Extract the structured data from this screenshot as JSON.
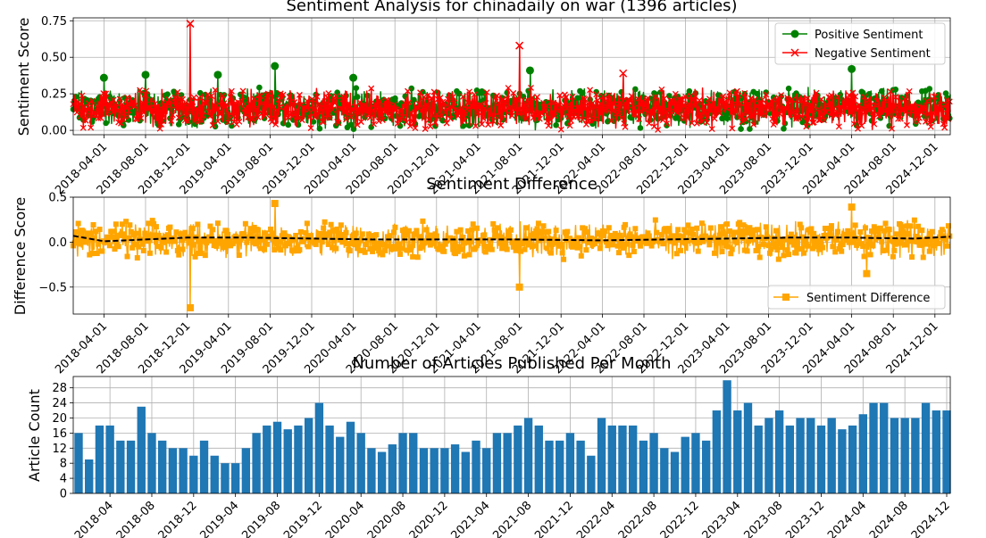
{
  "chart_data": [
    {
      "type": "line",
      "title": "Sentiment Analysis for chinadaily on war (1396 articles)",
      "xlabel": "",
      "ylabel": "Sentiment Score",
      "x_ticks": [
        "2018-04-01",
        "2018-08-01",
        "2018-12-01",
        "2019-04-01",
        "2019-08-01",
        "2019-12-01",
        "2020-04-01",
        "2020-08-01",
        "2020-12-01",
        "2021-04-01",
        "2021-08-01",
        "2021-12-01",
        "2022-04-01",
        "2022-08-01",
        "2022-12-01",
        "2023-04-01",
        "2023-08-01",
        "2023-12-01",
        "2024-04-01",
        "2024-08-01",
        "2024-12-01"
      ],
      "xlim": [
        "2018-01-01",
        "2025-01-15"
      ],
      "y_ticks": [
        "0.00",
        "0.25",
        "0.50",
        "0.75"
      ],
      "ylim": [
        -0.03,
        0.77
      ],
      "grid": true,
      "legend_position": "top-right",
      "series": [
        {
          "name": "Positive Sentiment",
          "color": "#008000",
          "marker": "circle",
          "n_points": 1396,
          "typical_range": [
            0.0,
            0.3
          ],
          "peaks": [
            {
              "x": "2018-04-01",
              "y": 0.36
            },
            {
              "x": "2018-08-01",
              "y": 0.38
            },
            {
              "x": "2019-03-01",
              "y": 0.38
            },
            {
              "x": "2019-08-15",
              "y": 0.44
            },
            {
              "x": "2020-04-01",
              "y": 0.36
            },
            {
              "x": "2021-09-01",
              "y": 0.41
            },
            {
              "x": "2024-04-01",
              "y": 0.42
            }
          ]
        },
        {
          "name": "Negative Sentiment",
          "color": "#ff0000",
          "marker": "x",
          "n_points": 1396,
          "typical_range": [
            0.0,
            0.3
          ],
          "peaks": [
            {
              "x": "2018-12-10",
              "y": 0.73
            },
            {
              "x": "2021-08-01",
              "y": 0.58
            },
            {
              "x": "2022-06-01",
              "y": 0.39
            }
          ]
        }
      ]
    },
    {
      "type": "line",
      "title": "Sentiment Difference",
      "xlabel": "",
      "ylabel": "Difference Score",
      "x_ticks": [
        "2018-04-01",
        "2018-08-01",
        "2018-12-01",
        "2019-04-01",
        "2019-08-01",
        "2019-12-01",
        "2020-04-01",
        "2020-08-01",
        "2020-12-01",
        "2021-04-01",
        "2021-08-01",
        "2021-12-01",
        "2022-04-01",
        "2022-08-01",
        "2022-12-01",
        "2023-04-01",
        "2023-08-01",
        "2023-12-01",
        "2024-04-01",
        "2024-08-01",
        "2024-12-01"
      ],
      "xlim": [
        "2018-01-01",
        "2025-01-15"
      ],
      "y_ticks": [
        "−0.5",
        "0.0",
        "0.5"
      ],
      "ylim": [
        -0.8,
        0.5
      ],
      "grid": true,
      "legend_position": "bottom-right",
      "series": [
        {
          "name": "Sentiment Difference",
          "color": "#ffa500",
          "marker": "square",
          "n_points": 1396,
          "typical_range": [
            -0.2,
            0.25
          ],
          "extremes": [
            {
              "x": "2018-12-10",
              "y": -0.73
            },
            {
              "x": "2019-08-15",
              "y": 0.43
            },
            {
              "x": "2021-08-01",
              "y": -0.5
            },
            {
              "x": "2024-04-01",
              "y": 0.39
            },
            {
              "x": "2024-05-15",
              "y": -0.35
            }
          ]
        },
        {
          "name": "",
          "style": "dashed",
          "color": "#000000",
          "x": [
            "2018-01-01",
            "2018-04-01",
            "2018-08-01",
            "2018-12-01",
            "2019-06-01",
            "2019-12-01",
            "2020-06-01",
            "2021-01-01",
            "2021-08-01",
            "2022-04-01",
            "2022-10-01",
            "2023-04-01",
            "2023-10-01",
            "2024-04-01",
            "2024-10-01",
            "2025-01-15"
          ],
          "values": [
            0.07,
            0.01,
            0.03,
            0.05,
            0.05,
            0.04,
            0.03,
            0.03,
            0.03,
            0.02,
            0.03,
            0.04,
            0.05,
            0.05,
            0.04,
            0.06
          ]
        }
      ]
    },
    {
      "type": "bar",
      "title": "Number of Articles Published Per Month",
      "xlabel": "",
      "ylabel": "Article Count",
      "x_ticks": [
        "2018-04",
        "2018-08",
        "2018-12",
        "2019-04",
        "2019-08",
        "2019-12",
        "2020-04",
        "2020-08",
        "2020-12",
        "2021-04",
        "2021-08",
        "2021-12",
        "2022-04",
        "2022-08",
        "2022-12",
        "2023-04",
        "2023-08",
        "2023-12",
        "2024-04",
        "2024-08",
        "2024-12"
      ],
      "y_ticks": [
        "0",
        "4",
        "8",
        "12",
        "16",
        "20",
        "24",
        "28"
      ],
      "ylim": [
        0,
        31
      ],
      "grid": true,
      "color": "#1f77b4",
      "categories": [
        "2018-01",
        "2018-02",
        "2018-03",
        "2018-04",
        "2018-05",
        "2018-06",
        "2018-07",
        "2018-08",
        "2018-09",
        "2018-10",
        "2018-11",
        "2018-12",
        "2019-01",
        "2019-02",
        "2019-03",
        "2019-04",
        "2019-05",
        "2019-06",
        "2019-07",
        "2019-08",
        "2019-09",
        "2019-10",
        "2019-11",
        "2019-12",
        "2020-01",
        "2020-02",
        "2020-03",
        "2020-04",
        "2020-05",
        "2020-06",
        "2020-07",
        "2020-08",
        "2020-09",
        "2020-10",
        "2020-11",
        "2020-12",
        "2021-01",
        "2021-02",
        "2021-03",
        "2021-04",
        "2021-05",
        "2021-06",
        "2021-07",
        "2021-08",
        "2021-09",
        "2021-10",
        "2021-11",
        "2021-12",
        "2022-01",
        "2022-02",
        "2022-03",
        "2022-04",
        "2022-05",
        "2022-06",
        "2022-07",
        "2022-08",
        "2022-09",
        "2022-10",
        "2022-11",
        "2022-12",
        "2023-01",
        "2023-02",
        "2023-03",
        "2023-04",
        "2023-05",
        "2023-06",
        "2023-07",
        "2023-08",
        "2023-09",
        "2023-10",
        "2023-11",
        "2023-12",
        "2024-01",
        "2024-02",
        "2024-03",
        "2024-04",
        "2024-05",
        "2024-06",
        "2024-07",
        "2024-08",
        "2024-09",
        "2024-10",
        "2024-11",
        "2024-12"
      ],
      "values": [
        16,
        9,
        18,
        18,
        14,
        14,
        23,
        16,
        14,
        12,
        12,
        10,
        14,
        10,
        8,
        8,
        12,
        16,
        18,
        19,
        17,
        18,
        20,
        24,
        18,
        15,
        19,
        16,
        12,
        11,
        13,
        16,
        16,
        12,
        12,
        12,
        13,
        11,
        14,
        12,
        16,
        16,
        18,
        20,
        18,
        14,
        14,
        16,
        14,
        10,
        20,
        18,
        18,
        18,
        14,
        16,
        12,
        11,
        15,
        16,
        14,
        22,
        30,
        22,
        24,
        18,
        20,
        22,
        18,
        20,
        20,
        18,
        20,
        17,
        18,
        21,
        24,
        24,
        20,
        20,
        20,
        24,
        22,
        22
      ]
    }
  ]
}
